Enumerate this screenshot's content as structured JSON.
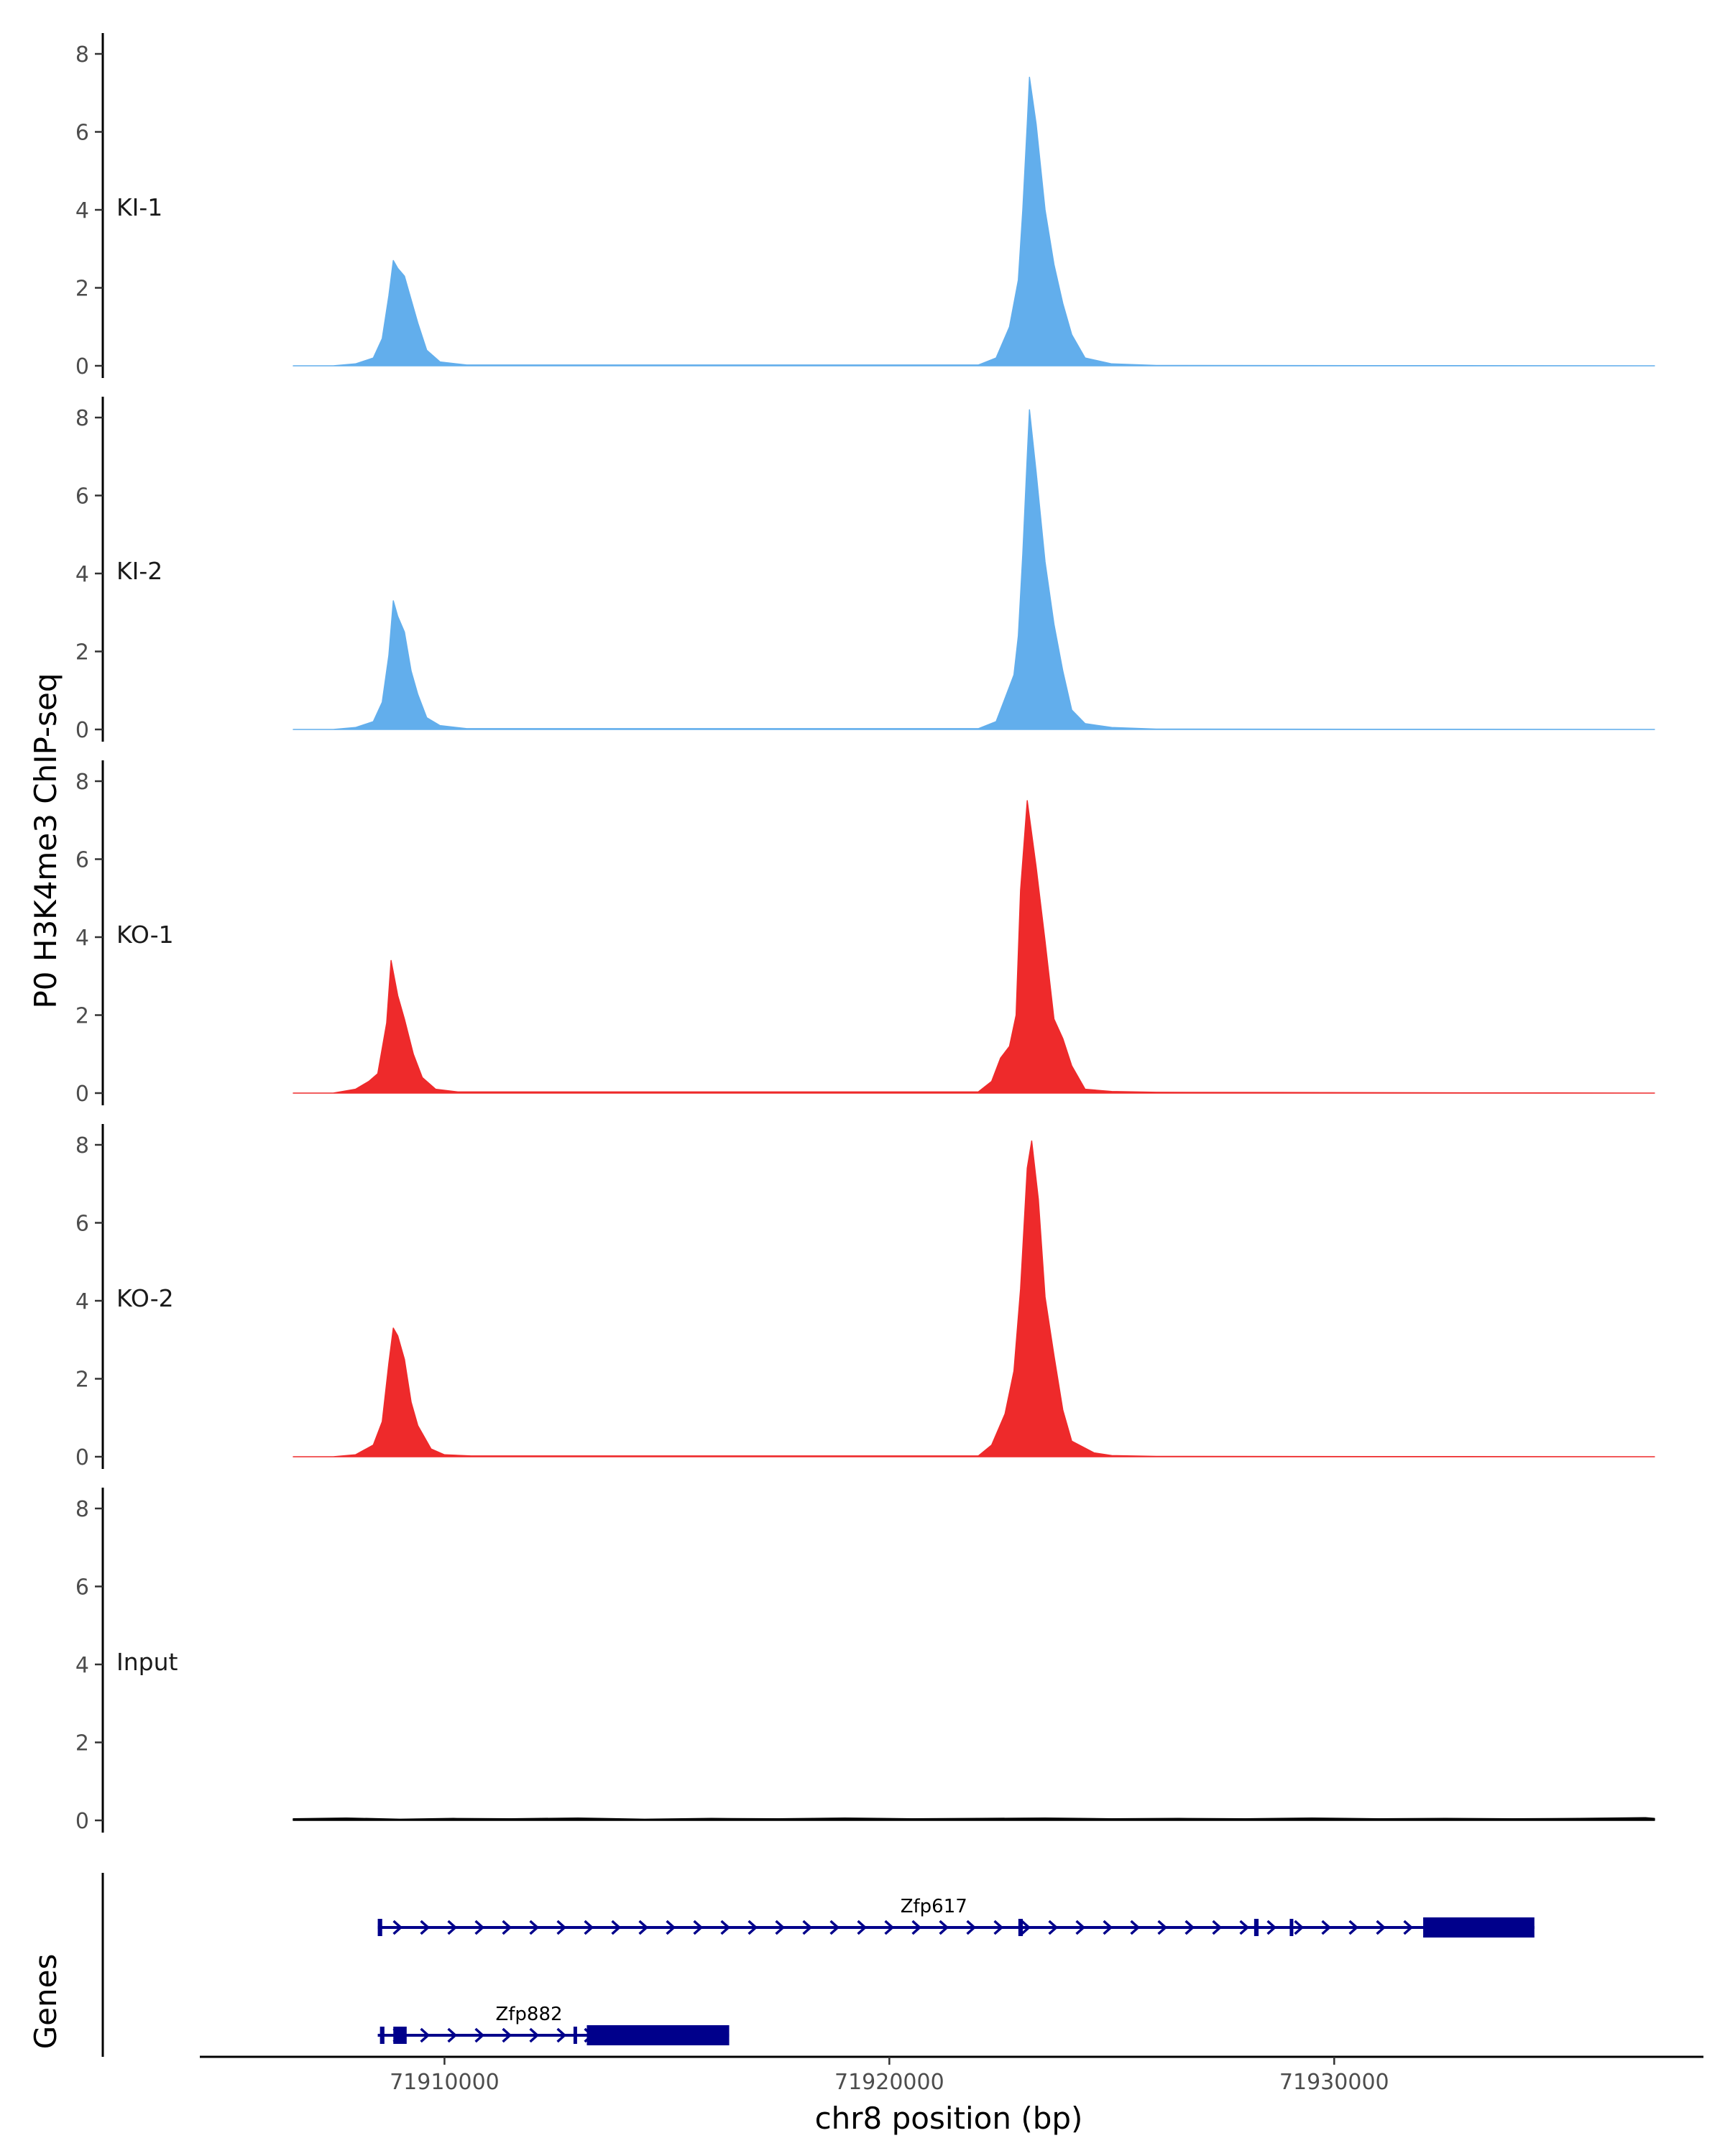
{
  "chart_data": {
    "type": "area",
    "ylabel": "P0 H3K4me3 ChIP-seq",
    "xlabel": "chr8 position (bp)",
    "genes_label": "Genes",
    "xlim": [
      71904500,
      71938300
    ],
    "ylim": [
      0,
      8.5
    ],
    "y_ticks": [
      0,
      2,
      4,
      6,
      8
    ],
    "x_ticks": [
      {
        "value": 71910000,
        "label": "71910000"
      },
      {
        "value": 71920000,
        "label": "71920000"
      },
      {
        "value": 71930000,
        "label": "71930000"
      }
    ],
    "signal_range": [
      71906600,
      71937200
    ],
    "colors": {
      "KI": "#62aeec",
      "KO": "#ee2a2b",
      "Input": "#000000",
      "genes": "#00008b"
    },
    "tracks": [
      {
        "name": "KI-1",
        "color": "#62aeec",
        "points": [
          [
            71906600,
            0
          ],
          [
            71907500,
            0
          ],
          [
            71908000,
            0.05
          ],
          [
            71908400,
            0.2
          ],
          [
            71908600,
            0.7
          ],
          [
            71908750,
            1.8
          ],
          [
            71908850,
            2.7
          ],
          [
            71908950,
            2.5
          ],
          [
            71909100,
            2.3
          ],
          [
            71909250,
            1.7
          ],
          [
            71909400,
            1.1
          ],
          [
            71909600,
            0.4
          ],
          [
            71909900,
            0.1
          ],
          [
            71910500,
            0.02
          ],
          [
            71922000,
            0.02
          ],
          [
            71922400,
            0.2
          ],
          [
            71922700,
            1.0
          ],
          [
            71922900,
            2.2
          ],
          [
            71923000,
            4.0
          ],
          [
            71923100,
            6.2
          ],
          [
            71923150,
            7.4
          ],
          [
            71923300,
            6.2
          ],
          [
            71923500,
            4.0
          ],
          [
            71923700,
            2.6
          ],
          [
            71923900,
            1.6
          ],
          [
            71924100,
            0.8
          ],
          [
            71924400,
            0.2
          ],
          [
            71925000,
            0.05
          ],
          [
            71926000,
            0.01
          ],
          [
            71937200,
            0
          ]
        ]
      },
      {
        "name": "KI-2",
        "color": "#62aeec",
        "points": [
          [
            71906600,
            0
          ],
          [
            71907500,
            0
          ],
          [
            71908000,
            0.05
          ],
          [
            71908400,
            0.2
          ],
          [
            71908600,
            0.7
          ],
          [
            71908750,
            1.9
          ],
          [
            71908850,
            3.3
          ],
          [
            71908950,
            2.9
          ],
          [
            71909100,
            2.5
          ],
          [
            71909250,
            1.5
          ],
          [
            71909400,
            0.9
          ],
          [
            71909600,
            0.3
          ],
          [
            71909900,
            0.1
          ],
          [
            71910500,
            0.02
          ],
          [
            71922000,
            0.02
          ],
          [
            71922400,
            0.2
          ],
          [
            71922600,
            0.8
          ],
          [
            71922800,
            1.4
          ],
          [
            71922900,
            2.4
          ],
          [
            71923000,
            4.5
          ],
          [
            71923100,
            7.0
          ],
          [
            71923150,
            8.2
          ],
          [
            71923300,
            6.6
          ],
          [
            71923500,
            4.3
          ],
          [
            71923700,
            2.7
          ],
          [
            71923900,
            1.5
          ],
          [
            71924100,
            0.5
          ],
          [
            71924400,
            0.15
          ],
          [
            71925000,
            0.05
          ],
          [
            71926000,
            0.01
          ],
          [
            71937200,
            0
          ]
        ]
      },
      {
        "name": "KO-1",
        "color": "#ee2a2b",
        "points": [
          [
            71906600,
            0
          ],
          [
            71907500,
            0
          ],
          [
            71908000,
            0.1
          ],
          [
            71908300,
            0.3
          ],
          [
            71908500,
            0.5
          ],
          [
            71908700,
            1.8
          ],
          [
            71908800,
            3.4
          ],
          [
            71908950,
            2.5
          ],
          [
            71909100,
            1.9
          ],
          [
            71909300,
            1.0
          ],
          [
            71909500,
            0.4
          ],
          [
            71909800,
            0.1
          ],
          [
            71910300,
            0.03
          ],
          [
            71922000,
            0.03
          ],
          [
            71922300,
            0.3
          ],
          [
            71922500,
            0.9
          ],
          [
            71922700,
            1.2
          ],
          [
            71922850,
            2.0
          ],
          [
            71922950,
            5.2
          ],
          [
            71923100,
            7.5
          ],
          [
            71923300,
            5.8
          ],
          [
            71923500,
            3.9
          ],
          [
            71923700,
            1.9
          ],
          [
            71923900,
            1.4
          ],
          [
            71924100,
            0.7
          ],
          [
            71924400,
            0.1
          ],
          [
            71925000,
            0.04
          ],
          [
            71926000,
            0.02
          ],
          [
            71937200,
            0
          ]
        ]
      },
      {
        "name": "KO-2",
        "color": "#ee2a2b",
        "points": [
          [
            71906600,
            0
          ],
          [
            71907500,
            0
          ],
          [
            71908000,
            0.05
          ],
          [
            71908400,
            0.3
          ],
          [
            71908600,
            0.9
          ],
          [
            71908750,
            2.4
          ],
          [
            71908850,
            3.3
          ],
          [
            71908950,
            3.1
          ],
          [
            71909100,
            2.5
          ],
          [
            71909250,
            1.4
          ],
          [
            71909400,
            0.8
          ],
          [
            71909700,
            0.2
          ],
          [
            71910000,
            0.05
          ],
          [
            71910600,
            0.02
          ],
          [
            71922000,
            0.02
          ],
          [
            71922300,
            0.3
          ],
          [
            71922600,
            1.1
          ],
          [
            71922800,
            2.2
          ],
          [
            71922950,
            4.3
          ],
          [
            71923100,
            7.4
          ],
          [
            71923200,
            8.1
          ],
          [
            71923350,
            6.6
          ],
          [
            71923500,
            4.1
          ],
          [
            71923700,
            2.6
          ],
          [
            71923900,
            1.2
          ],
          [
            71924100,
            0.4
          ],
          [
            71924600,
            0.1
          ],
          [
            71925000,
            0.03
          ],
          [
            71926000,
            0.01
          ],
          [
            71937200,
            0
          ]
        ]
      },
      {
        "name": "Input",
        "color": "#000000",
        "points": [
          [
            71906600,
            0.04
          ],
          [
            71907800,
            0.06
          ],
          [
            71909000,
            0.03
          ],
          [
            71910200,
            0.05
          ],
          [
            71911500,
            0.04
          ],
          [
            71913000,
            0.06
          ],
          [
            71914500,
            0.03
          ],
          [
            71916000,
            0.05
          ],
          [
            71917500,
            0.04
          ],
          [
            71919000,
            0.06
          ],
          [
            71920500,
            0.04
          ],
          [
            71922000,
            0.05
          ],
          [
            71923500,
            0.06
          ],
          [
            71925000,
            0.04
          ],
          [
            71926500,
            0.05
          ],
          [
            71928000,
            0.04
          ],
          [
            71929500,
            0.06
          ],
          [
            71931000,
            0.04
          ],
          [
            71932500,
            0.05
          ],
          [
            71934000,
            0.04
          ],
          [
            71935500,
            0.05
          ],
          [
            71937000,
            0.07
          ],
          [
            71937200,
            0.05
          ]
        ]
      }
    ],
    "genes": [
      {
        "name": "Zfp617",
        "start": 71908500,
        "end": 71934500,
        "label_pos": 71921000,
        "exons": [
          [
            71908500,
            71908600
          ],
          [
            71922900,
            71923000
          ],
          [
            71928200,
            71928300
          ],
          [
            71929000,
            71929050
          ],
          [
            71932000,
            71934500
          ]
        ]
      },
      {
        "name": "Zfp882",
        "start": 71908500,
        "end": 71916400,
        "label_pos": 71911900,
        "exons": [
          [
            71908550,
            71908650
          ],
          [
            71908850,
            71909150
          ],
          [
            71912900,
            71912950
          ],
          [
            71913200,
            71916400
          ]
        ]
      }
    ]
  }
}
